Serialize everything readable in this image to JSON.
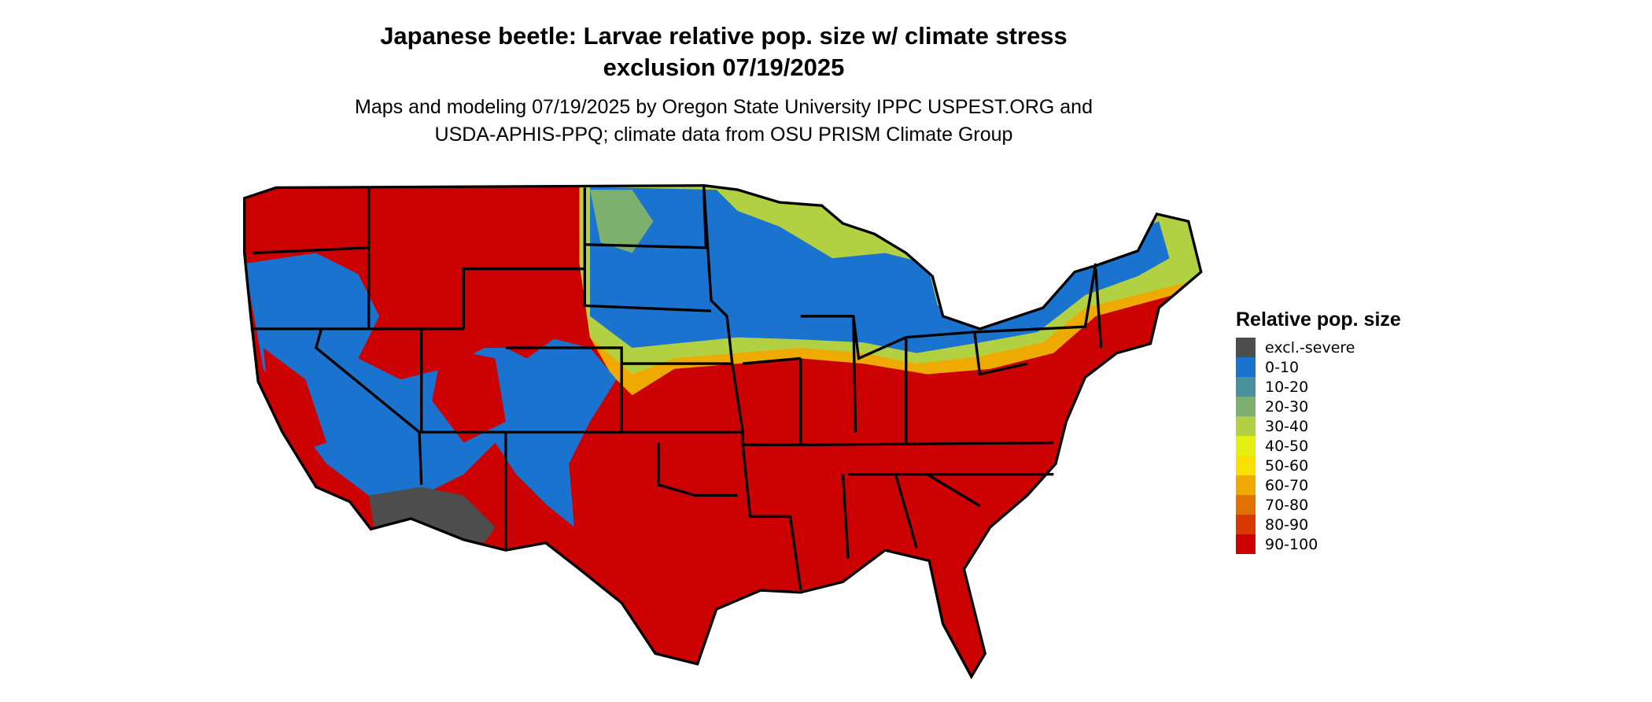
{
  "title_line1": "Japanese beetle: Larvae relative pop. size w/ climate stress",
  "title_line2": "exclusion 07/19/2025",
  "subtitle_line1": "Maps and modeling 07/19/2025 by Oregon State University IPPC USPEST.ORG and",
  "subtitle_line2": "USDA-APHIS-PPQ; climate data from OSU PRISM Climate Group",
  "legend": {
    "title": "Relative pop. size",
    "items": [
      {
        "label": "excl.-severe",
        "color": "#4d4d4d"
      },
      {
        "label": "0-10",
        "color": "#1a73cf"
      },
      {
        "label": "10-20",
        "color": "#47909c"
      },
      {
        "label": "20-30",
        "color": "#7daf6e"
      },
      {
        "label": "30-40",
        "color": "#b2d142"
      },
      {
        "label": "40-50",
        "color": "#e4f013"
      },
      {
        "label": "50-60",
        "color": "#f8e100"
      },
      {
        "label": "60-70",
        "color": "#efaa00"
      },
      {
        "label": "70-80",
        "color": "#e37100"
      },
      {
        "label": "80-90",
        "color": "#d93800"
      },
      {
        "label": "90-100",
        "color": "#cc0000"
      }
    ]
  }
}
